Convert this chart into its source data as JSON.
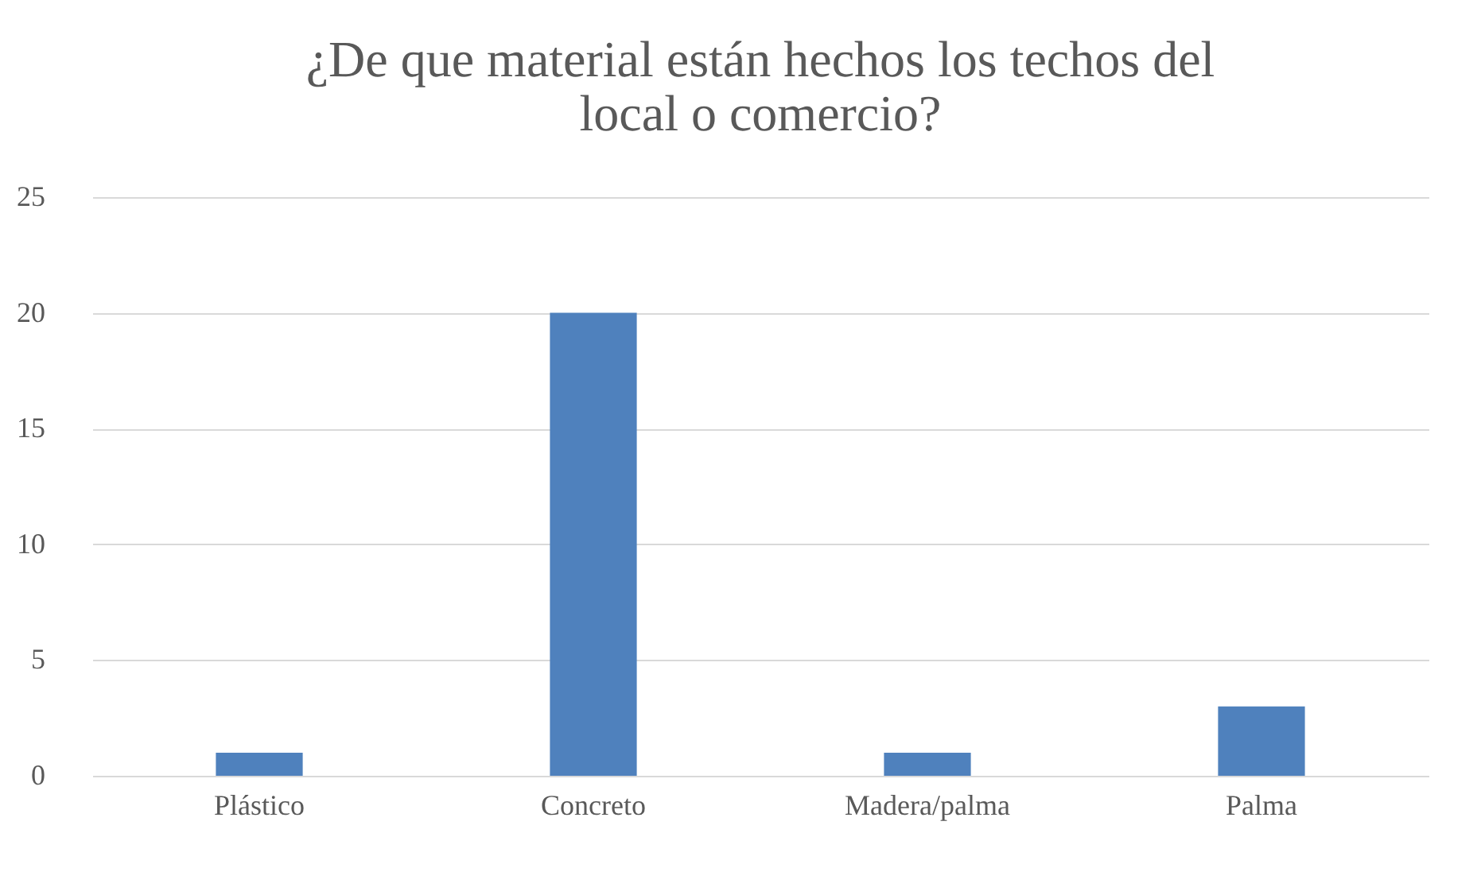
{
  "chart_data": {
    "type": "bar",
    "title": "¿De que material están hechos los techos del local o comercio?",
    "categories": [
      "Plástico",
      "Concreto",
      "Madera/palma",
      "Palma"
    ],
    "values": [
      1,
      20,
      1,
      3
    ],
    "color": "#4f81bd",
    "ylim": [
      0,
      25
    ],
    "yticks": [
      0,
      5,
      10,
      15,
      20,
      25
    ],
    "grid": "y"
  }
}
